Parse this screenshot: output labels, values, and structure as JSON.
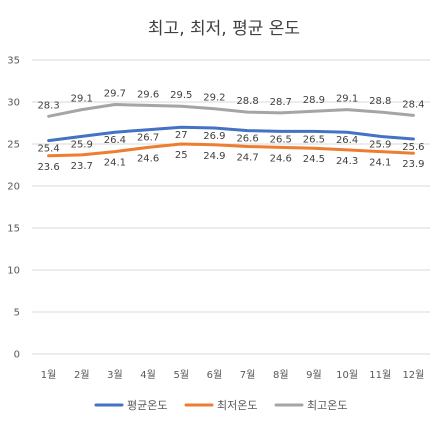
{
  "chart_data": {
    "type": "line",
    "title": "최고, 최저, 평균 온도",
    "categories": [
      "1월",
      "2월",
      "3월",
      "4월",
      "5월",
      "6월",
      "7월",
      "8월",
      "9월",
      "10월",
      "11월",
      "12월"
    ],
    "ylim": [
      0,
      35
    ],
    "yticks": [
      "0",
      "5",
      "10",
      "15",
      "20",
      "25",
      "30",
      "35"
    ],
    "grid": true,
    "legend_position": "bottom",
    "series": [
      {
        "name": "평균온도",
        "color": "#4472C4",
        "values": [
          25.4,
          25.9,
          26.4,
          26.7,
          27,
          26.9,
          26.6,
          26.5,
          26.5,
          26.4,
          25.9,
          25.6
        ],
        "labels": [
          "25.4",
          "25.9",
          "26.4",
          "26.7",
          "27",
          "26.9",
          "26.6",
          "26.5",
          "26.5",
          "26.4",
          "25.9",
          "25.6"
        ]
      },
      {
        "name": "최저온도",
        "color": "#ED7D31",
        "values": [
          23.6,
          23.7,
          24.1,
          24.6,
          25,
          24.9,
          24.7,
          24.6,
          24.5,
          24.3,
          24.1,
          23.9
        ],
        "labels": [
          "23.6",
          "23.7",
          "24.1",
          "24.6",
          "25",
          "24.9",
          "24.7",
          "24.6",
          "24.5",
          "24.3",
          "24.1",
          "23.9"
        ]
      },
      {
        "name": "최고온도",
        "color": "#A5A5A5",
        "values": [
          28.3,
          29.1,
          29.7,
          29.6,
          29.5,
          29.2,
          28.8,
          28.7,
          28.9,
          29.1,
          28.8,
          28.4
        ],
        "labels": [
          "28.3",
          "29.1",
          "29.7",
          "29.6",
          "29.5",
          "29.2",
          "28.8",
          "28.7",
          "28.9",
          "29.1",
          "28.8",
          "28.4"
        ]
      }
    ]
  }
}
